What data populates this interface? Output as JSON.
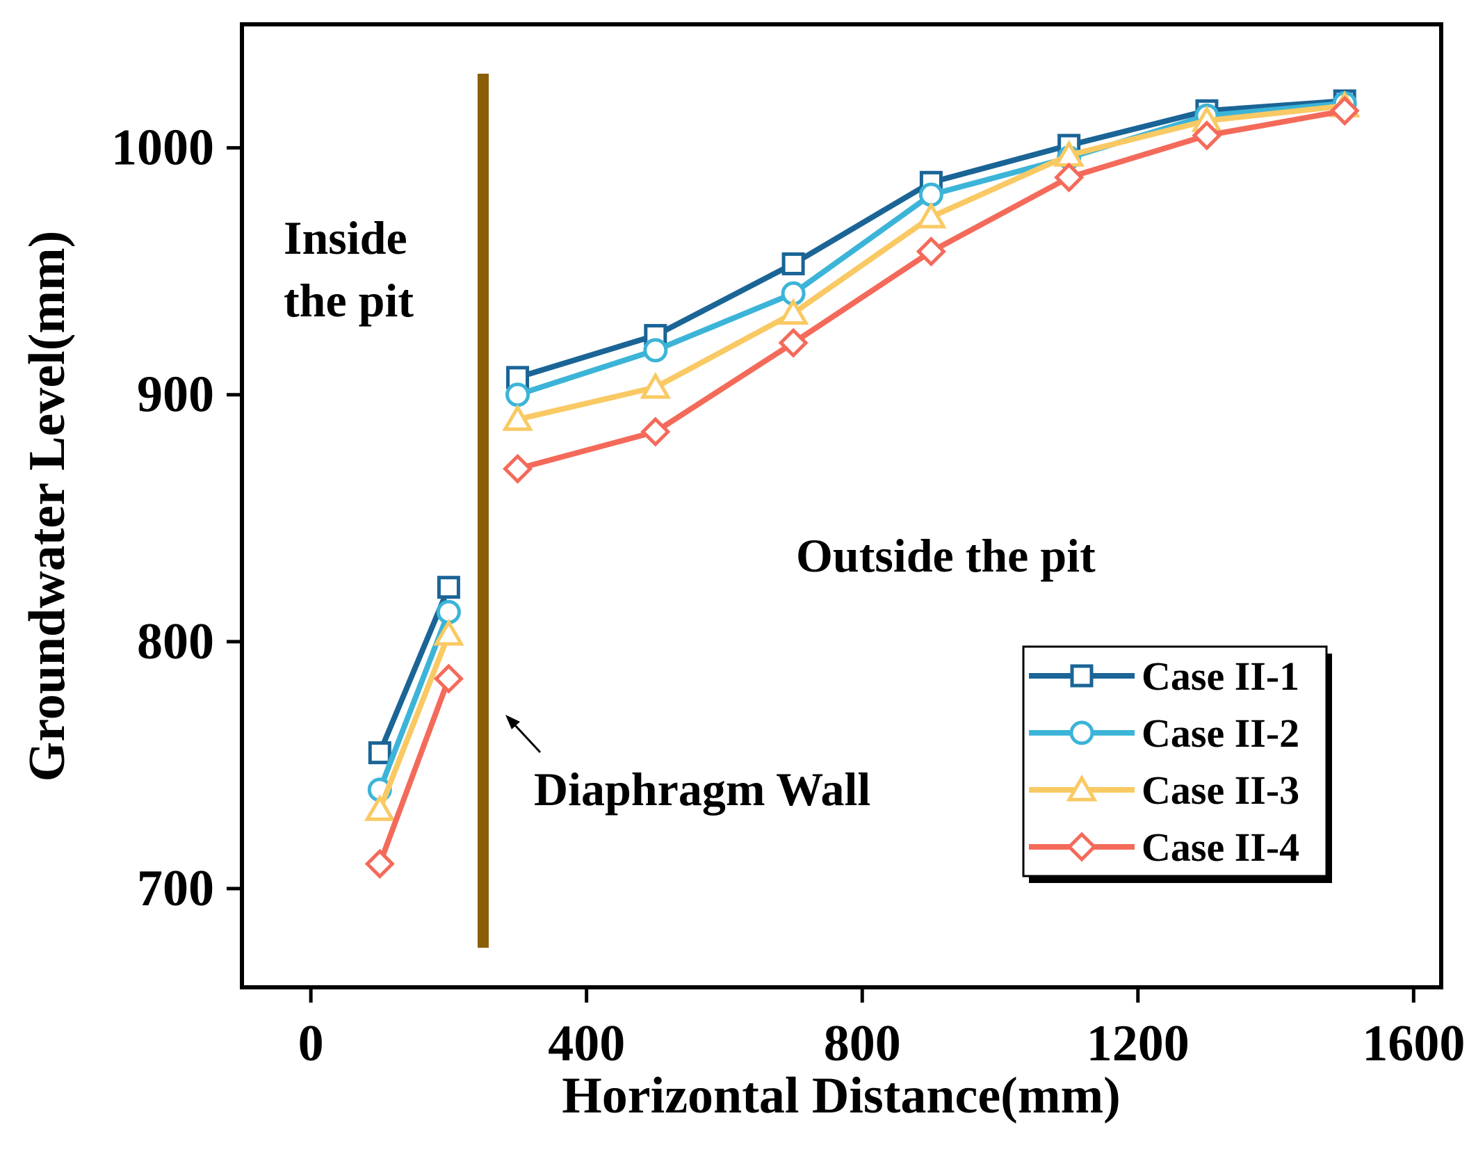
{
  "chart_data": {
    "type": "line",
    "title": "",
    "xlabel": "Horizontal Distance(mm)",
    "ylabel": "Groundwater Level(mm)",
    "xlim": [
      -100,
      1640
    ],
    "ylim": [
      660,
      1050
    ],
    "xticks": [
      0,
      400,
      800,
      1200,
      1600
    ],
    "yticks": [
      700,
      800,
      900,
      1000
    ],
    "grid": false,
    "legend_position": "bottom-right",
    "series": [
      {
        "name": "Case II-1",
        "color": "#1a6496",
        "marker": "square",
        "segments": [
          [
            [
              100,
              755
            ],
            [
              200,
              822
            ]
          ],
          [
            [
              300,
              907
            ],
            [
              500,
              924
            ],
            [
              700,
              953
            ],
            [
              900,
              986
            ],
            [
              1100,
              1001
            ],
            [
              1300,
              1015
            ],
            [
              1500,
              1019
            ]
          ]
        ]
      },
      {
        "name": "Case II-2",
        "color": "#3cb4d8",
        "marker": "circle",
        "segments": [
          [
            [
              100,
              740
            ],
            [
              200,
              812
            ]
          ],
          [
            [
              300,
              900
            ],
            [
              500,
              918
            ],
            [
              700,
              941
            ],
            [
              900,
              981
            ],
            [
              1100,
              996
            ],
            [
              1300,
              1013
            ],
            [
              1500,
              1018
            ]
          ]
        ]
      },
      {
        "name": "Case II-3",
        "color": "#f9c963",
        "marker": "triangle",
        "segments": [
          [
            [
              100,
              732
            ],
            [
              200,
              803
            ]
          ],
          [
            [
              300,
              890
            ],
            [
              500,
              903
            ],
            [
              700,
              933
            ],
            [
              900,
              972
            ],
            [
              1100,
              997
            ],
            [
              1300,
              1011
            ],
            [
              1500,
              1017
            ]
          ]
        ]
      },
      {
        "name": "Case II-4",
        "color": "#f46a5a",
        "marker": "diamond",
        "segments": [
          [
            [
              100,
              710
            ],
            [
              200,
              785
            ]
          ],
          [
            [
              300,
              870
            ],
            [
              500,
              885
            ],
            [
              700,
              921
            ],
            [
              900,
              958
            ],
            [
              1100,
              988
            ],
            [
              1300,
              1005
            ],
            [
              1500,
              1015
            ]
          ]
        ]
      }
    ],
    "wall": {
      "x": 250,
      "y_range": [
        676,
        1030
      ],
      "color": "#8b5e0a"
    },
    "annotations": {
      "inside_line1": "Inside",
      "inside_line2": "the pit",
      "outside": "Outside the pit",
      "wall_label": "Diaphragm Wall"
    }
  }
}
